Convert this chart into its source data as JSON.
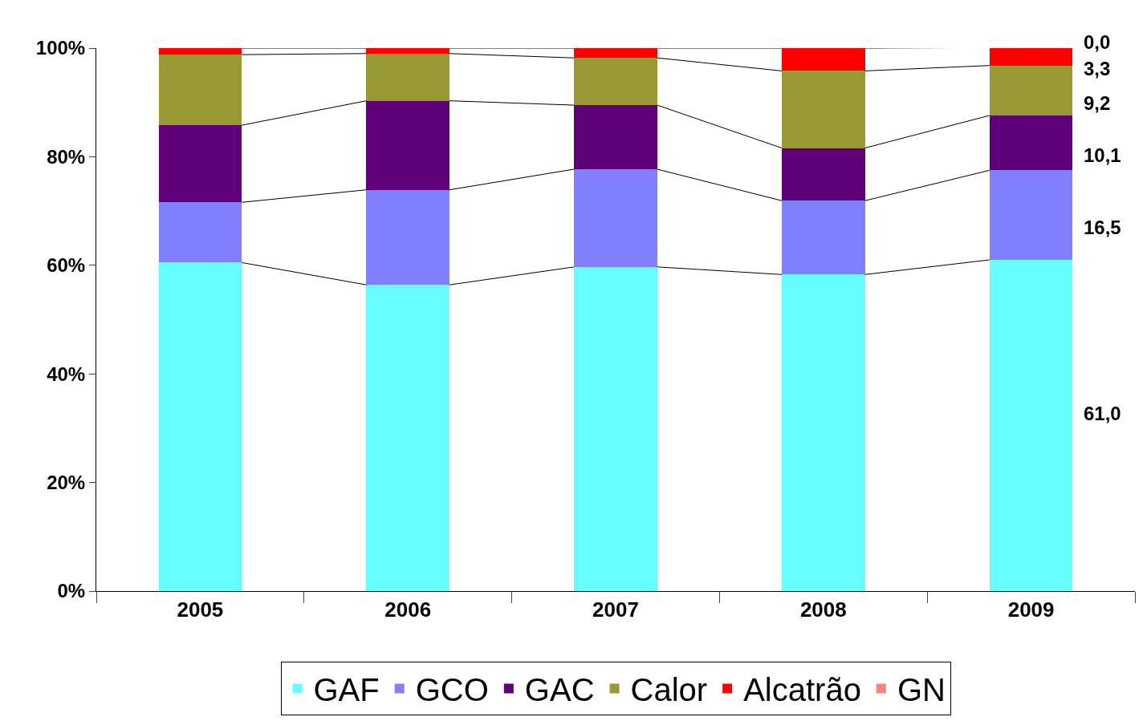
{
  "chart_data": {
    "type": "bar",
    "stacked": true,
    "categories": [
      "2005",
      "2006",
      "2007",
      "2008",
      "2009"
    ],
    "series": [
      {
        "name": "GAF",
        "color": "#66ffff",
        "values": [
          60.5,
          56.4,
          59.7,
          58.3,
          61.0
        ]
      },
      {
        "name": "GCO",
        "color": "#8080ff",
        "values": [
          11.1,
          17.5,
          18.0,
          13.6,
          16.5
        ]
      },
      {
        "name": "GAC",
        "color": "#600078",
        "values": [
          14.2,
          16.4,
          11.8,
          9.7,
          10.1
        ]
      },
      {
        "name": "Calor",
        "color": "#999933",
        "values": [
          13.0,
          8.7,
          8.7,
          14.2,
          9.2
        ]
      },
      {
        "name": "Alcatrão",
        "color": "#ff0000",
        "values": [
          1.2,
          1.0,
          1.8,
          4.2,
          3.3
        ]
      },
      {
        "name": "GN",
        "color": "#ff8080",
        "values": [
          0.0,
          0.0,
          0.0,
          0.0,
          0.0
        ]
      }
    ],
    "ylim": [
      0,
      100
    ],
    "yticks": [
      {
        "value": 0,
        "label": "0%"
      },
      {
        "value": 20,
        "label": "20%"
      },
      {
        "value": 40,
        "label": "40%"
      },
      {
        "value": 60,
        "label": "60%"
      },
      {
        "value": 80,
        "label": "80%"
      },
      {
        "value": 100,
        "label": "100%"
      }
    ],
    "annotations": [
      "0,0",
      "3,3",
      "9,2",
      "10,1",
      "16,5",
      "61,0"
    ],
    "legend": "bottom"
  }
}
